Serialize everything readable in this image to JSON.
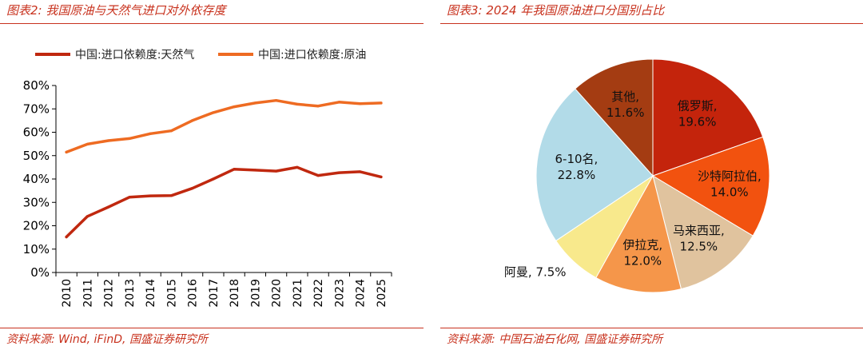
{
  "left": {
    "title": "图表2:  我国原油与天然气进口对外依存度",
    "source": "资料来源:  Wind,  iFinD,  国盛证券研究所"
  },
  "right": {
    "title": "图表3:  2024 年我国原油进口分国别占比",
    "source": "资料来源:  中国石油石化网,  国盛证券研究所"
  },
  "chart_data": [
    {
      "type": "line",
      "title": "",
      "xlabel": "",
      "ylabel": "",
      "x": [
        "2010",
        "2011",
        "2012",
        "2013",
        "2014",
        "2015",
        "2016",
        "2017",
        "2018",
        "2019",
        "2020",
        "2021",
        "2022",
        "2023",
        "2024",
        "2025"
      ],
      "ylim": [
        0,
        80
      ],
      "yticks": [
        "0%",
        "10%",
        "20%",
        "30%",
        "40%",
        "50%",
        "60%",
        "70%",
        "80%"
      ],
      "legend_position": "top",
      "grid": false,
      "series": [
        {
          "name": "中国:进口依赖度:天然气",
          "color": "#c0280f",
          "values": [
            15.2,
            24.0,
            28.0,
            32.2,
            32.8,
            32.9,
            36.0,
            40.0,
            44.2,
            43.8,
            43.4,
            45.0,
            41.5,
            42.7,
            43.1,
            40.9
          ]
        },
        {
          "name": "中国:进口依赖度:原油",
          "color": "#ee6b22",
          "values": [
            51.5,
            54.9,
            56.4,
            57.3,
            59.4,
            60.6,
            65.0,
            68.4,
            70.9,
            72.5,
            73.6,
            72.0,
            71.2,
            72.9,
            72.2,
            72.5
          ]
        }
      ]
    },
    {
      "type": "pie",
      "title": "",
      "slices": [
        {
          "name": "俄罗斯",
          "label": "俄罗斯,",
          "pct": "19.6%",
          "value": 19.6,
          "color": "#c4240c"
        },
        {
          "name": "沙特阿拉伯",
          "label": "沙特阿拉伯,",
          "pct": "14.0%",
          "value": 14.0,
          "color": "#f2520f"
        },
        {
          "name": "马来西亚",
          "label": "马来西亚,",
          "pct": "12.5%",
          "value": 12.5,
          "color": "#e0c39e"
        },
        {
          "name": "伊拉克",
          "label": "伊拉克,",
          "pct": "12.0%",
          "value": 12.0,
          "color": "#f5964a"
        },
        {
          "name": "阿曼",
          "label": "阿曼, 7.5%",
          "pct": "",
          "value": 7.5,
          "color": "#f8e98c"
        },
        {
          "name": "6-10名",
          "label": "6-10名,",
          "pct": "22.8%",
          "value": 22.8,
          "color": "#b2dbe8"
        },
        {
          "name": "其他",
          "label": "其他,",
          "pct": "11.6%",
          "value": 11.6,
          "color": "#a43c12"
        }
      ]
    }
  ]
}
